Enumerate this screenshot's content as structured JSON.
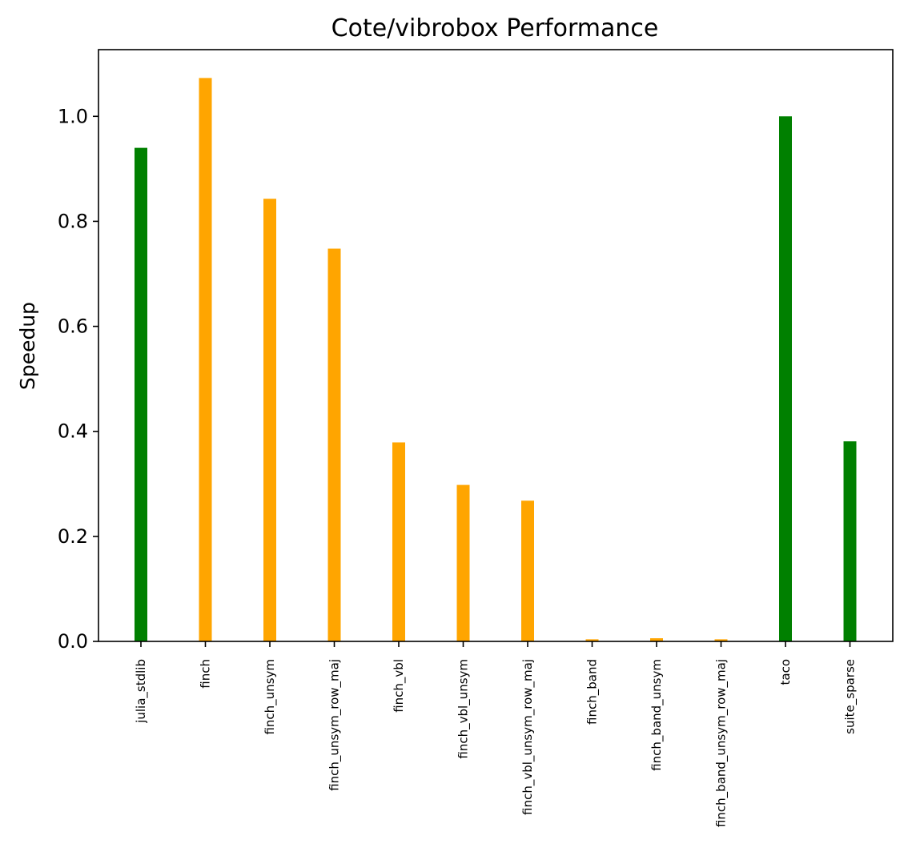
{
  "chart_data": {
    "type": "bar",
    "title": "Cote/vibrobox Performance",
    "xlabel": "",
    "ylabel": "Speedup",
    "ylim": [
      0,
      1.127
    ],
    "yticks": [
      "0.0",
      "0.2",
      "0.4",
      "0.6",
      "0.8",
      "1.0"
    ],
    "ytick_values": [
      0,
      0.2,
      0.4,
      0.6,
      0.8,
      1.0
    ],
    "grid": false,
    "legend": "none",
    "categories": [
      "julia_stdlib",
      "finch",
      "finch_unsym",
      "finch_unsym_row_maj",
      "finch_vbl",
      "finch_vbl_unsym",
      "finch_vbl_unsym_row_maj",
      "finch_band",
      "finch_band_unsym",
      "finch_band_unsym_row_maj",
      "taco",
      "suite_sparse"
    ],
    "values": [
      0.94,
      1.073,
      0.843,
      0.748,
      0.379,
      0.298,
      0.268,
      0.004,
      0.006,
      0.004,
      1.0,
      0.381
    ],
    "colors": [
      "#008000",
      "#ffa500",
      "#ffa500",
      "#ffa500",
      "#ffa500",
      "#ffa500",
      "#ffa500",
      "#ffa500",
      "#ffa500",
      "#ffa500",
      "#008000",
      "#008000"
    ]
  }
}
